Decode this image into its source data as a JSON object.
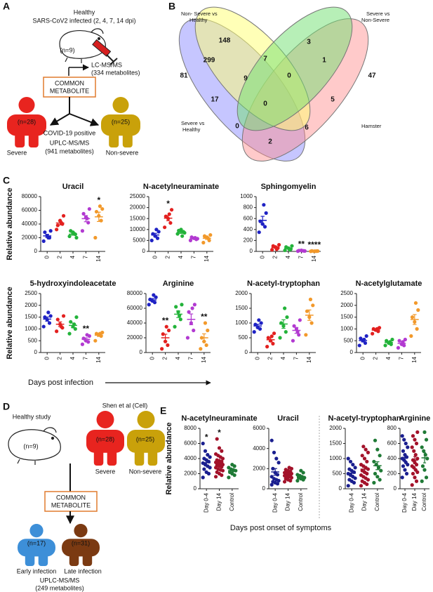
{
  "panel_a": {
    "label": "A",
    "title": "Healthy",
    "subtitle": "SARS-CoV2 infected (2, 4, 7, 14 dpi)",
    "n_hamster": "(n=9)",
    "lcms": "LC-MS/MS",
    "lcms_count": "(334 metabolites)",
    "common": [
      "COMMON",
      "METABOLITE"
    ],
    "severe_n": "(n=28)",
    "nonsevere_n": "(n=25)",
    "covid": "COVID-19 positive",
    "severe": "Severe",
    "nonsevere": "Non-severe",
    "uplc": "UPLC-MS/MS",
    "uplc_count": "(941 metabolites)"
  },
  "venn": {
    "label": "B",
    "sets": [
      [
        "Non- Severe vs",
        "Healthy"
      ],
      [
        "Severe vs",
        "Non-Severe"
      ],
      [
        "Severe vs",
        "Healthy"
      ],
      [
        "Hamster"
      ]
    ],
    "counts": [
      148,
      3,
      299,
      7,
      1,
      81,
      9,
      0,
      47,
      17,
      0,
      5,
      0,
      6,
      2
    ]
  },
  "panel_c": {
    "label": "C",
    "xlabel": "Days  post infection"
  },
  "panel_d": {
    "label": "D",
    "healthy": "Healthy study",
    "n_hamster": "(n=9)",
    "source": "Shen et al (Cell)",
    "severe_n": "(n=28)",
    "nonsevere_n": "(n=25)",
    "severe": "Severe",
    "nonsevere": "Non-severe",
    "common": [
      "COMMON",
      "METABOLITE"
    ],
    "early_n": "(n=17)",
    "late_n": "(n=31)",
    "early": "Early infection",
    "late": "Late infection",
    "uplc": "UPLC-MS/MS",
    "uplc_count": "(249 metabolites)"
  },
  "panel_e": {
    "label": "E",
    "xlabel": "Days post onset of symptoms"
  },
  "chart_data": [
    {
      "type": "strip",
      "title": "Uracil",
      "ylabel": "Relative abundance",
      "categories": [
        "0",
        "2",
        "4",
        "7",
        "14"
      ],
      "colors": [
        "#1f22c4",
        "#e3201f",
        "#23b33a",
        "#b23ad1",
        "#f2992b"
      ],
      "values": [
        [
          15000,
          20000,
          23000,
          28000,
          30000,
          20000
        ],
        [
          32000,
          40000,
          45000,
          38000,
          52000,
          42000
        ],
        [
          22000,
          25000,
          28000,
          30000,
          20000,
          26000
        ],
        [
          30000,
          42000,
          50000,
          55000,
          62000,
          48000
        ],
        [
          20000,
          45000,
          52000,
          58000,
          62000,
          66000
        ]
      ],
      "ylim": [
        0,
        80000
      ],
      "yticks": [
        0,
        20000,
        40000,
        60000,
        80000
      ],
      "annotations": [
        {
          "text": "*",
          "category": "14"
        }
      ]
    },
    {
      "type": "strip",
      "title": "N-acetylneuraminate",
      "categories": [
        "0",
        "2",
        "4",
        "7",
        "14"
      ],
      "colors": [
        "#1f22c4",
        "#e3201f",
        "#23b33a",
        "#b23ad1",
        "#f2992b"
      ],
      "values": [
        [
          5000,
          6000,
          7000,
          8000,
          9000,
          10000
        ],
        [
          11000,
          13000,
          15000,
          16000,
          19000,
          17000
        ],
        [
          8000,
          9000,
          10000,
          9500,
          8500,
          7000
        ],
        [
          5000,
          5500,
          6000,
          6500,
          5800,
          6200
        ],
        [
          4000,
          5000,
          6500,
          7000,
          7500,
          6000
        ]
      ],
      "ylim": [
        0,
        25000
      ],
      "yticks": [
        0,
        5000,
        10000,
        15000,
        20000,
        25000
      ],
      "annotations": [
        {
          "text": "*",
          "category": "2"
        }
      ]
    },
    {
      "type": "strip",
      "title": "Sphingomyelin",
      "categories": [
        "0",
        "2",
        "4",
        "7",
        "14"
      ],
      "colors": [
        "#1f22c4",
        "#e3201f",
        "#23b33a",
        "#b23ad1",
        "#f2992b"
      ],
      "values": [
        [
          350,
          450,
          500,
          550,
          700,
          850
        ],
        [
          30,
          60,
          80,
          100,
          120,
          40
        ],
        [
          20,
          40,
          60,
          80,
          100,
          30
        ],
        [
          5,
          10,
          20,
          15,
          8,
          12
        ],
        [
          2,
          5,
          3,
          8,
          6,
          4
        ]
      ],
      "ylim": [
        0,
        1000
      ],
      "yticks": [
        0,
        200,
        400,
        600,
        800,
        1000
      ],
      "annotations": [
        {
          "text": "**",
          "category": "7"
        },
        {
          "text": "****",
          "category": "14"
        }
      ]
    },
    {
      "type": "strip",
      "title": "5-hydroxyindoleacetate",
      "ylabel": "Relative abundance",
      "categories": [
        "0",
        "2",
        "4",
        "7",
        "14"
      ],
      "colors": [
        "#1f22c4",
        "#e3201f",
        "#23b33a",
        "#b23ad1",
        "#f2992b"
      ],
      "values": [
        [
          1100,
          1250,
          1400,
          1500,
          1550,
          1700
        ],
        [
          900,
          1050,
          1200,
          1400,
          1550,
          1100
        ],
        [
          800,
          1000,
          1100,
          1300,
          1500,
          1200
        ],
        [
          350,
          450,
          500,
          600,
          700,
          750
        ],
        [
          500,
          700,
          750,
          800,
          850,
          800
        ]
      ],
      "ylim": [
        0,
        2500
      ],
      "yticks": [
        0,
        500,
        1000,
        1500,
        2000,
        2500
      ],
      "annotations": [
        {
          "text": "**",
          "category": "7"
        }
      ]
    },
    {
      "type": "strip",
      "title": "Arginine",
      "categories": [
        "0",
        "2",
        "4",
        "7",
        "14"
      ],
      "colors": [
        "#1f22c4",
        "#e3201f",
        "#23b33a",
        "#b23ad1",
        "#f2992b"
      ],
      "values": [
        [
          65000,
          68000,
          70000,
          72000,
          75000,
          78000
        ],
        [
          5000,
          10000,
          15000,
          25000,
          30000,
          35000
        ],
        [
          35000,
          45000,
          55000,
          62000,
          65000,
          50000
        ],
        [
          20000,
          30000,
          40000,
          55000,
          65000,
          60000
        ],
        [
          5000,
          10000,
          15000,
          20000,
          30000,
          40000
        ]
      ],
      "ylim": [
        0,
        80000
      ],
      "yticks": [
        0,
        20000,
        40000,
        60000,
        80000
      ],
      "annotations": [
        {
          "text": "**",
          "category": "2"
        },
        {
          "text": "**",
          "category": "14"
        }
      ]
    },
    {
      "type": "strip",
      "title": "N-acetyl-tryptophan",
      "categories": [
        "0",
        "2",
        "4",
        "7",
        "14"
      ],
      "colors": [
        "#1f22c4",
        "#e3201f",
        "#23b33a",
        "#b23ad1",
        "#f2992b"
      ],
      "values": [
        [
          700,
          800,
          850,
          950,
          1000,
          1100
        ],
        [
          200,
          300,
          400,
          500,
          650,
          550
        ],
        [
          500,
          700,
          900,
          1000,
          1200,
          1500
        ],
        [
          400,
          600,
          800,
          900,
          1100,
          700
        ],
        [
          600,
          1000,
          1200,
          1400,
          1600,
          1800
        ]
      ],
      "ylim": [
        0,
        2000
      ],
      "yticks": [
        0,
        500,
        1000,
        1500,
        2000
      ]
    },
    {
      "type": "strip",
      "title": "N-acetylglutamate",
      "categories": [
        "0",
        "2",
        "4",
        "7",
        "14"
      ],
      "colors": [
        "#1f22c4",
        "#e3201f",
        "#23b33a",
        "#b23ad1",
        "#f2992b"
      ],
      "values": [
        [
          300,
          400,
          500,
          600,
          700,
          550
        ],
        [
          800,
          900,
          950,
          1000,
          1050,
          1000
        ],
        [
          300,
          350,
          400,
          500,
          550,
          450
        ],
        [
          200,
          300,
          350,
          500,
          550,
          450
        ],
        [
          700,
          1000,
          1300,
          1500,
          1800,
          2100
        ]
      ],
      "ylim": [
        0,
        2500
      ],
      "yticks": [
        0,
        500,
        1000,
        1500,
        2000,
        2500
      ]
    },
    {
      "type": "strip",
      "title": "N-acetylneuraminate",
      "ylabel": "Relative abundance",
      "categories": [
        "Day 0-4",
        "Day 14",
        "Control"
      ],
      "colors": [
        "#1a1f8f",
        "#a3122a",
        "#1f7a36"
      ],
      "values": [
        [
          1500,
          2000,
          2200,
          2600,
          2800,
          3000,
          3200,
          3400,
          3600,
          3800,
          4000,
          4200,
          4500,
          5000,
          6000
        ],
        [
          1600,
          1800,
          2000,
          2200,
          2400,
          2500,
          2600,
          2800,
          2900,
          3000,
          3100,
          3200,
          3300,
          3400,
          3500,
          3600,
          3700,
          3800,
          4000,
          4200,
          4400,
          4600,
          5000,
          5400,
          6600
        ],
        [
          1500,
          1800,
          2000,
          2200,
          2400,
          2500,
          2600,
          2800,
          3000,
          3200
        ]
      ],
      "ylim": [
        0,
        8000
      ],
      "yticks": [
        0,
        2000,
        4000,
        6000,
        8000
      ],
      "annotations": [
        {
          "text": "*",
          "category": "Day 0-4"
        },
        {
          "text": "*",
          "category": "Day 14"
        }
      ]
    },
    {
      "type": "strip",
      "title": "Uracil",
      "categories": [
        "Day 0-4",
        "Day 14",
        "Control"
      ],
      "colors": [
        "#1a1f8f",
        "#a3122a",
        "#1f7a36"
      ],
      "values": [
        [
          400,
          500,
          600,
          700,
          800,
          900,
          1000,
          1200,
          1400,
          1600,
          2000,
          2600,
          3000,
          3600,
          4800
        ],
        [
          700,
          800,
          900,
          1000,
          1100,
          1200,
          1200,
          1300,
          1300,
          1400,
          1400,
          1500,
          1500,
          1600,
          1600,
          1700,
          1800,
          1900,
          2000,
          2100
        ],
        [
          800,
          900,
          1000,
          1100,
          1100,
          1200,
          1300,
          1400,
          1600,
          1800
        ]
      ],
      "ylim": [
        0,
        6000
      ],
      "yticks": [
        0,
        2000,
        4000,
        6000
      ]
    },
    {
      "type": "strip",
      "title": "N-acetyl-tryptophan",
      "categories": [
        "Day 0-4",
        "Day 14",
        "Control"
      ],
      "colors": [
        "#1a1f8f",
        "#a3122a",
        "#1f7a36"
      ],
      "values": [
        [
          100,
          200,
          250,
          300,
          350,
          400,
          450,
          500,
          550,
          600,
          650,
          700,
          800,
          900,
          1000
        ],
        [
          100,
          150,
          200,
          250,
          300,
          350,
          400,
          450,
          500,
          550,
          600,
          650,
          700,
          750,
          800,
          900,
          1000,
          1100,
          1200,
          1300,
          1400
        ],
        [
          200,
          300,
          400,
          500,
          600,
          700,
          800,
          900,
          1100,
          1300,
          1600
        ]
      ],
      "ylim": [
        0,
        2000
      ],
      "yticks": [
        0,
        500,
        1000,
        1500,
        2000
      ]
    },
    {
      "type": "strip",
      "title": "Arginine",
      "categories": [
        "Day 0-4",
        "Day 14",
        "Control"
      ],
      "colors": [
        "#1a1f8f",
        "#a3122a",
        "#1f7a36"
      ],
      "values": [
        [
          150,
          200,
          250,
          300,
          320,
          350,
          380,
          400,
          420,
          450,
          500,
          550,
          600,
          650,
          700
        ],
        [
          50,
          100,
          150,
          200,
          220,
          250,
          280,
          300,
          320,
          350,
          380,
          400,
          450,
          500,
          550,
          600,
          650,
          700,
          750
        ],
        [
          100,
          150,
          250,
          300,
          400,
          450,
          500,
          550,
          650,
          750
        ]
      ],
      "ylim": [
        0,
        800
      ],
      "yticks": [
        0,
        200,
        400,
        600,
        800
      ]
    }
  ]
}
